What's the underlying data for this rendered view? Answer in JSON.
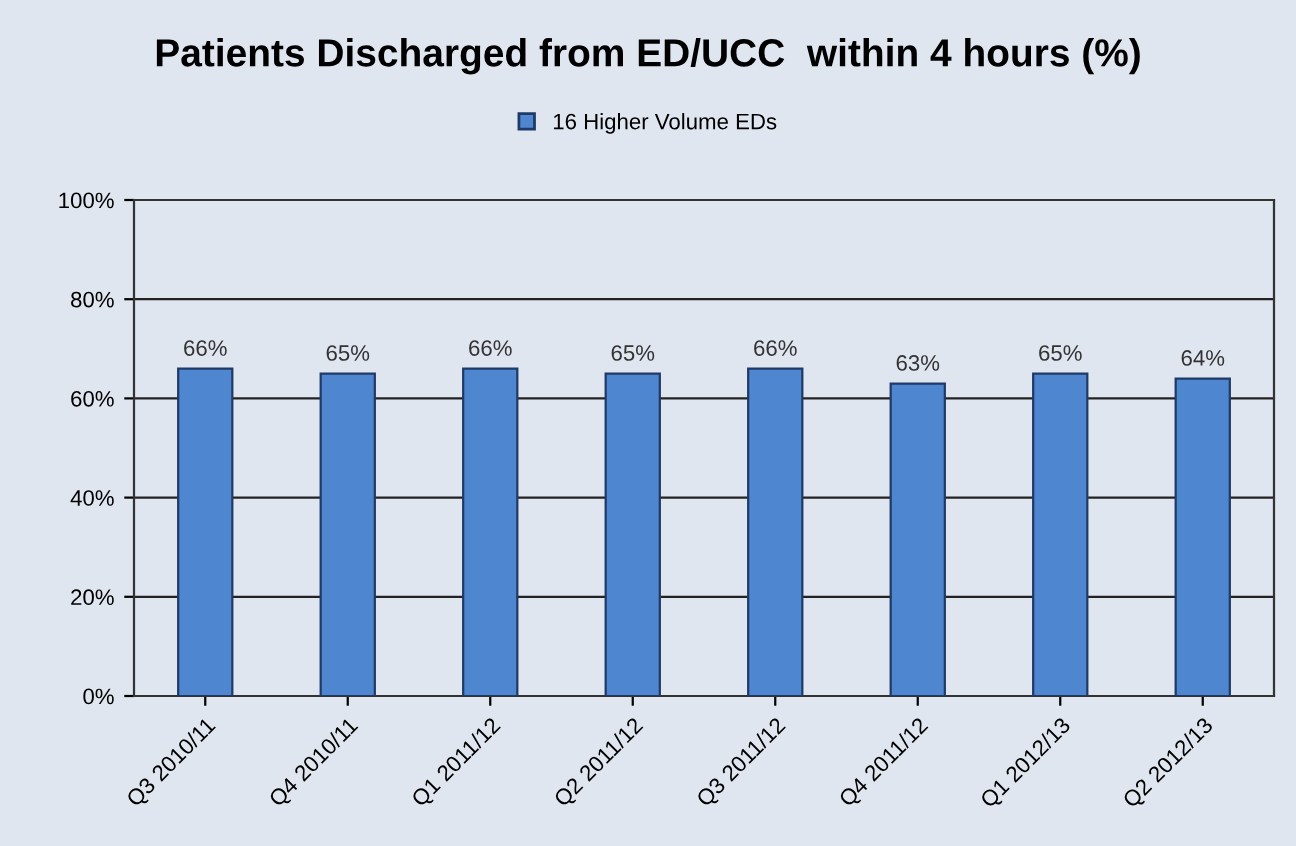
{
  "chart_data": {
    "type": "bar",
    "title": "Patients Discharged from ED/UCC  within 4 hours (%)",
    "categories": [
      "Q3 2010/11",
      "Q4 2010/11",
      "Q1 2011/12",
      "Q2 2011/12",
      "Q3 2011/12",
      "Q4 2011/12",
      "Q1 2012/13",
      "Q2 2012/13"
    ],
    "series": [
      {
        "name": "16 Higher Volume EDs",
        "color": "#4f86d0",
        "values": [
          66,
          65,
          66,
          65,
          66,
          63,
          65,
          64
        ]
      }
    ],
    "value_labels": [
      "66%",
      "65%",
      "66%",
      "65%",
      "66%",
      "63%",
      "65%",
      "64%"
    ],
    "ylim": [
      0,
      100
    ],
    "yticks": [
      {
        "value": 0,
        "label": "0%"
      },
      {
        "value": 20,
        "label": "20%"
      },
      {
        "value": 40,
        "label": "40%"
      },
      {
        "value": 60,
        "label": "60%"
      },
      {
        "value": 80,
        "label": "80%"
      },
      {
        "value": 100,
        "label": "100%"
      }
    ],
    "grid": "y",
    "legend": "top"
  }
}
